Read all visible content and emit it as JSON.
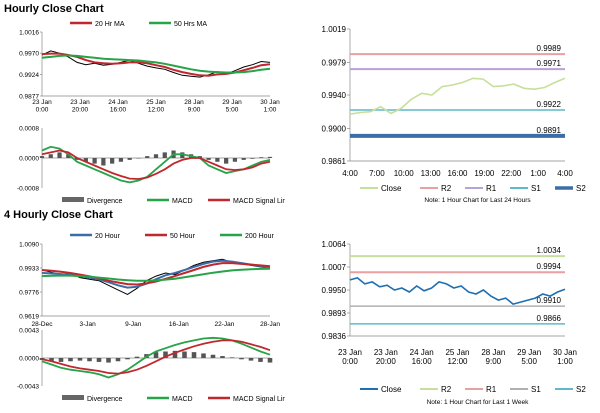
{
  "sections": [
    {
      "title": "Hourly Close Chart"
    },
    {
      "title": "4 Hourly Close Chart"
    }
  ],
  "chart_data": [
    {
      "id": "hourly-ma",
      "type": "line",
      "legend": [
        "20 Hr MA",
        "50 Hrs MA"
      ],
      "y_ticks": [
        "1.0016",
        "0.9970",
        "0.9924",
        "0.9877"
      ],
      "ylim": [
        0.9877,
        1.0016
      ],
      "x_ticks": [
        "23 Jan\n0:00",
        "23 Jan\n20:00",
        "24 Jan\n16:00",
        "25 Jan\n12:00",
        "28 Jan\n9:00",
        "29 Jan\n5:00",
        "30 Jan\n1:00"
      ],
      "series": [
        {
          "name": "",
          "color": "#000000",
          "values": [
            0.9966,
            0.9975,
            0.997,
            0.9962,
            0.995,
            0.9945,
            0.9948,
            0.9944,
            0.9946,
            0.995,
            0.9955,
            0.9948,
            0.9942,
            0.9938,
            0.9935,
            0.9928,
            0.9922,
            0.992,
            0.9918,
            0.9923,
            0.993,
            0.9925,
            0.9932,
            0.994,
            0.9945,
            0.9952,
            0.995
          ]
        },
        {
          "name": "20 Hr MA",
          "color": "#c0282f",
          "values": [
            0.9968,
            0.9969,
            0.9969,
            0.9966,
            0.9962,
            0.9955,
            0.995,
            0.9948,
            0.9947,
            0.9948,
            0.995,
            0.995,
            0.9948,
            0.9944,
            0.994,
            0.9934,
            0.9929,
            0.9925,
            0.9922,
            0.9921,
            0.9924,
            0.9925,
            0.9928,
            0.9933,
            0.9938,
            0.9944,
            0.9946
          ]
        },
        {
          "name": "50 Hrs MA",
          "color": "#27a348",
          "values": [
            0.996,
            0.9962,
            0.9964,
            0.9965,
            0.9964,
            0.9962,
            0.996,
            0.9958,
            0.9957,
            0.9956,
            0.9955,
            0.9954,
            0.9952,
            0.995,
            0.9947,
            0.9943,
            0.9939,
            0.9935,
            0.9932,
            0.993,
            0.9929,
            0.9928,
            0.9928,
            0.9929,
            0.9931,
            0.9934,
            0.9936
          ]
        }
      ]
    },
    {
      "id": "hourly-macd",
      "type": "bar",
      "legend": [
        "Divergence",
        "MACD",
        "MACD Signal Line"
      ],
      "y_ticks": [
        "0.0008",
        "0.0000",
        "-0.0008"
      ],
      "ylim": [
        -0.0008,
        0.0008
      ],
      "divergence": [
        5e-05,
        0.0001,
        0.00015,
        0.0001,
        -5e-05,
        -0.0001,
        -0.00015,
        -0.0002,
        -0.00015,
        -0.0001,
        -5e-05,
        0.0,
        5e-05,
        0.0001,
        0.00015,
        0.0002,
        0.00015,
        0.0001,
        5e-05,
        -5e-05,
        -0.0001,
        -0.00015,
        -0.0001,
        -5e-05,
        -2e-05,
        2e-05,
        3e-05
      ],
      "series": [
        {
          "name": "MACD",
          "color": "#27a348",
          "values": [
            0.0002,
            0.0003,
            0.00025,
            0.0001,
            -0.0001,
            -0.0002,
            -0.0003,
            -0.0004,
            -0.0005,
            -0.0006,
            -0.00065,
            -0.0006,
            -0.0005,
            -0.0003,
            -0.0001,
            0.0001,
            0.0001,
            5e-05,
            0.0,
            -0.0002,
            -0.0003,
            -0.0004,
            -0.00035,
            -0.0003,
            -0.0002,
            -0.0001,
            -5e-05
          ]
        },
        {
          "name": "MACD Signal Line",
          "color": "#c0282f",
          "values": [
            0.0001,
            0.00015,
            0.0002,
            0.00015,
            0.0,
            -0.0001,
            -0.0002,
            -0.0003,
            -0.0004,
            -0.00048,
            -0.00055,
            -0.00056,
            -0.00052,
            -0.00042,
            -0.0003,
            -0.00015,
            -5e-05,
            0.0,
            0.0,
            -0.0001,
            -0.0002,
            -0.0003,
            -0.00032,
            -0.0003,
            -0.00025,
            -0.00015,
            -0.0001
          ]
        }
      ]
    },
    {
      "id": "hourly-close",
      "type": "line",
      "legend": [
        "Close",
        "R2",
        "R1",
        "S1",
        "S2"
      ],
      "y_ticks": [
        "1.0019",
        "0.9979",
        "0.9940",
        "0.9900",
        "0.9861"
      ],
      "ylim": [
        0.9861,
        1.0019
      ],
      "x_ticks": [
        "4:00",
        "7:00",
        "10:00",
        "13:00",
        "16:00",
        "19:00",
        "22:00",
        "1:00",
        "4:00"
      ],
      "levels": [
        {
          "name": "R2",
          "value": 0.9989,
          "label": "0.9989",
          "color": "#e8a0a0",
          "width": 2
        },
        {
          "name": "R1",
          "value": 0.9971,
          "label": "0.9971",
          "color": "#b8a0d8",
          "width": 2
        },
        {
          "name": "S1",
          "value": 0.9922,
          "label": "0.9922",
          "color": "#5fb9c9",
          "width": 1.5
        },
        {
          "name": "S2",
          "value": 0.9891,
          "label": "0.9891",
          "color": "#3b6ea8",
          "width": 4
        }
      ],
      "series": [
        {
          "name": "Close",
          "color": "#c6df9c",
          "values": [
            0.9917,
            0.9919,
            0.992,
            0.9926,
            0.9918,
            0.9924,
            0.9935,
            0.9942,
            0.994,
            0.995,
            0.9952,
            0.9955,
            0.996,
            0.9959,
            0.995,
            0.9951,
            0.9953,
            0.9948,
            0.9947,
            0.9949,
            0.9955,
            0.996
          ]
        }
      ],
      "note": "Note: 1 Hour Chart for Last 24 Hours"
    },
    {
      "id": "four-hourly-ma",
      "type": "line",
      "legend": [
        "20 Hour",
        "50 Hour",
        "200 Hour"
      ],
      "y_ticks": [
        "1.0090",
        "0.9933",
        "0.9776",
        "0.9619"
      ],
      "ylim": [
        0.9619,
        1.009
      ],
      "x_ticks": [
        "28-Dec",
        "3-Jan",
        "9-Jan",
        "16-Jan",
        "22-Jan",
        "28-Jan"
      ],
      "series": [
        {
          "name": "",
          "color": "#000000",
          "values": [
            0.992,
            0.9905,
            0.989,
            0.99,
            0.987,
            0.986,
            0.985,
            0.982,
            0.979,
            0.976,
            0.98,
            0.985,
            0.988,
            0.99,
            0.989,
            0.992,
            0.995,
            0.997,
            0.998,
            0.999,
            0.997,
            0.996,
            0.995,
            0.994,
            0.993
          ]
        },
        {
          "name": "20 Hour",
          "color": "#3b6ea8",
          "values": [
            0.99,
            0.9898,
            0.9893,
            0.9888,
            0.988,
            0.987,
            0.9858,
            0.984,
            0.982,
            0.9805,
            0.981,
            0.983,
            0.986,
            0.9885,
            0.99,
            0.992,
            0.994,
            0.996,
            0.9975,
            0.998,
            0.9975,
            0.9965,
            0.9955,
            0.9945,
            0.9935
          ]
        },
        {
          "name": "50 Hour",
          "color": "#c0282f",
          "values": [
            0.992,
            0.9915,
            0.9908,
            0.99,
            0.989,
            0.9878,
            0.9865,
            0.985,
            0.9838,
            0.9828,
            0.9825,
            0.9832,
            0.9845,
            0.9862,
            0.988,
            0.99,
            0.992,
            0.994,
            0.9955,
            0.9965,
            0.9965,
            0.996,
            0.9955,
            0.995,
            0.9945
          ]
        },
        {
          "name": "200 Hour",
          "color": "#27a348",
          "values": [
            0.988,
            0.9882,
            0.9883,
            0.9883,
            0.988,
            0.9876,
            0.987,
            0.9864,
            0.9858,
            0.9853,
            0.985,
            0.985,
            0.9852,
            0.9857,
            0.9863,
            0.9872,
            0.9882,
            0.9892,
            0.9902,
            0.991,
            0.9917,
            0.9922,
            0.9925,
            0.9927,
            0.9928
          ]
        }
      ]
    },
    {
      "id": "four-hourly-macd",
      "type": "bar",
      "legend": [
        "Divergence",
        "MACD",
        "MACD Signal Line"
      ],
      "y_ticks": [
        "0.0043",
        "0.0000",
        "-0.0043"
      ],
      "ylim": [
        -0.0043,
        0.0043
      ],
      "divergence": [
        -0.0003,
        -0.0005,
        -0.0006,
        -0.0005,
        -0.0004,
        -0.0005,
        -0.0006,
        -0.0007,
        -0.0005,
        -0.0002,
        0.0002,
        0.0006,
        0.0009,
        0.001,
        0.0011,
        0.001,
        0.0009,
        0.0007,
        0.0005,
        0.0003,
        0.0001,
        -0.0002,
        -0.0004,
        -0.0006,
        -0.0007
      ],
      "series": [
        {
          "name": "MACD",
          "color": "#27a348",
          "values": [
            -0.0005,
            -0.001,
            -0.0015,
            -0.0018,
            -0.002,
            -0.0022,
            -0.0025,
            -0.003,
            -0.0025,
            -0.0018,
            -0.0008,
            0.0002,
            0.001,
            0.0015,
            0.002,
            0.0024,
            0.0027,
            0.003,
            0.0031,
            0.003,
            0.0027,
            0.0022,
            0.0016,
            0.001,
            0.0005
          ]
        },
        {
          "name": "MACD Signal Line",
          "color": "#c0282f",
          "values": [
            -0.0002,
            -0.0005,
            -0.0009,
            -0.0013,
            -0.0016,
            -0.0018,
            -0.002,
            -0.0023,
            -0.0024,
            -0.0022,
            -0.0018,
            -0.0012,
            -0.0005,
            0.0002,
            0.0008,
            0.0013,
            0.0018,
            0.0022,
            0.0025,
            0.0027,
            0.0027,
            0.0025,
            0.0021,
            0.0017,
            0.0012
          ]
        }
      ]
    },
    {
      "id": "four-hourly-close",
      "type": "line",
      "legend": [
        "Close",
        "R2",
        "R1",
        "S1",
        "S2"
      ],
      "y_ticks": [
        "1.0064",
        "1.0007",
        "0.9950",
        "0.9893",
        "0.9836"
      ],
      "ylim": [
        0.9836,
        1.0064
      ],
      "x_ticks": [
        "23 Jan\n0:00",
        "23 Jan\n20:00",
        "24 Jan\n16:00",
        "25 Jan\n12:00",
        "28 Jan\n9:00",
        "29 Jan\n5:00",
        "30 Jan\n1:00"
      ],
      "levels": [
        {
          "name": "R2",
          "value": 1.0034,
          "label": "1.0034",
          "color": "#c6df9c",
          "width": 2
        },
        {
          "name": "R1",
          "value": 0.9994,
          "label": "0.9994",
          "color": "#e8a0a0",
          "width": 2
        },
        {
          "name": "S1",
          "value": 0.991,
          "label": "0.9910",
          "color": "#b0b0b0",
          "width": 1.5
        },
        {
          "name": "S2",
          "value": 0.9866,
          "label": "0.9866",
          "color": "#5fb9c9",
          "width": 1.5
        }
      ],
      "series": [
        {
          "name": "Close",
          "color": "#1f6fb2",
          "values": [
            0.9975,
            0.998,
            0.9965,
            0.997,
            0.9958,
            0.9962,
            0.995,
            0.9955,
            0.9945,
            0.996,
            0.9948,
            0.9955,
            0.997,
            0.9965,
            0.9955,
            0.996,
            0.9945,
            0.994,
            0.995,
            0.9935,
            0.9925,
            0.993,
            0.9915,
            0.992,
            0.9925,
            0.993,
            0.994,
            0.9935,
            0.9945,
            0.9952
          ]
        }
      ],
      "note": "Note: 1 Hour Chart for Last 1 Week"
    }
  ]
}
